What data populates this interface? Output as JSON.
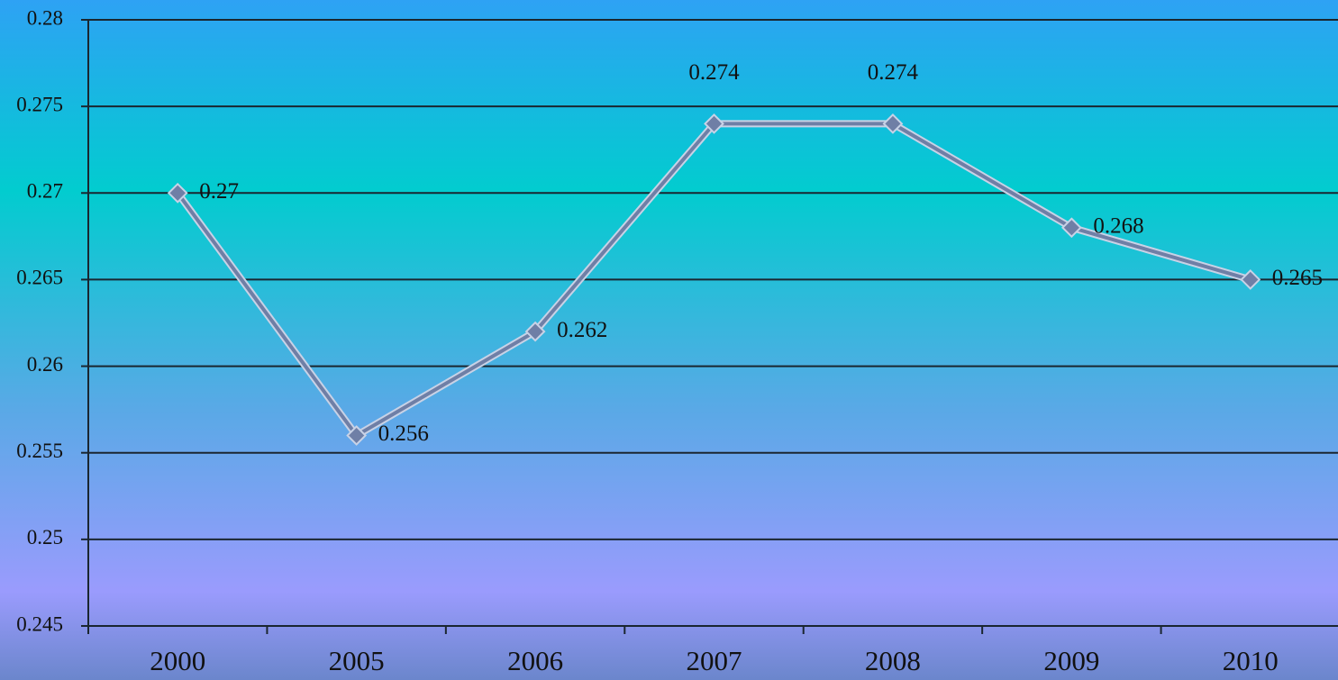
{
  "chart_data": {
    "type": "line",
    "categories": [
      "2000",
      "2005",
      "2006",
      "2007",
      "2008",
      "2009",
      "2010"
    ],
    "values": [
      0.27,
      0.256,
      0.262,
      0.274,
      0.274,
      0.268,
      0.265
    ],
    "color": "#6f7fa6",
    "ylim": [
      0.245,
      0.28
    ],
    "yticks": [
      0.245,
      0.25,
      0.255,
      0.26,
      0.265,
      0.27,
      0.275,
      0.28
    ],
    "grid": true
  }
}
